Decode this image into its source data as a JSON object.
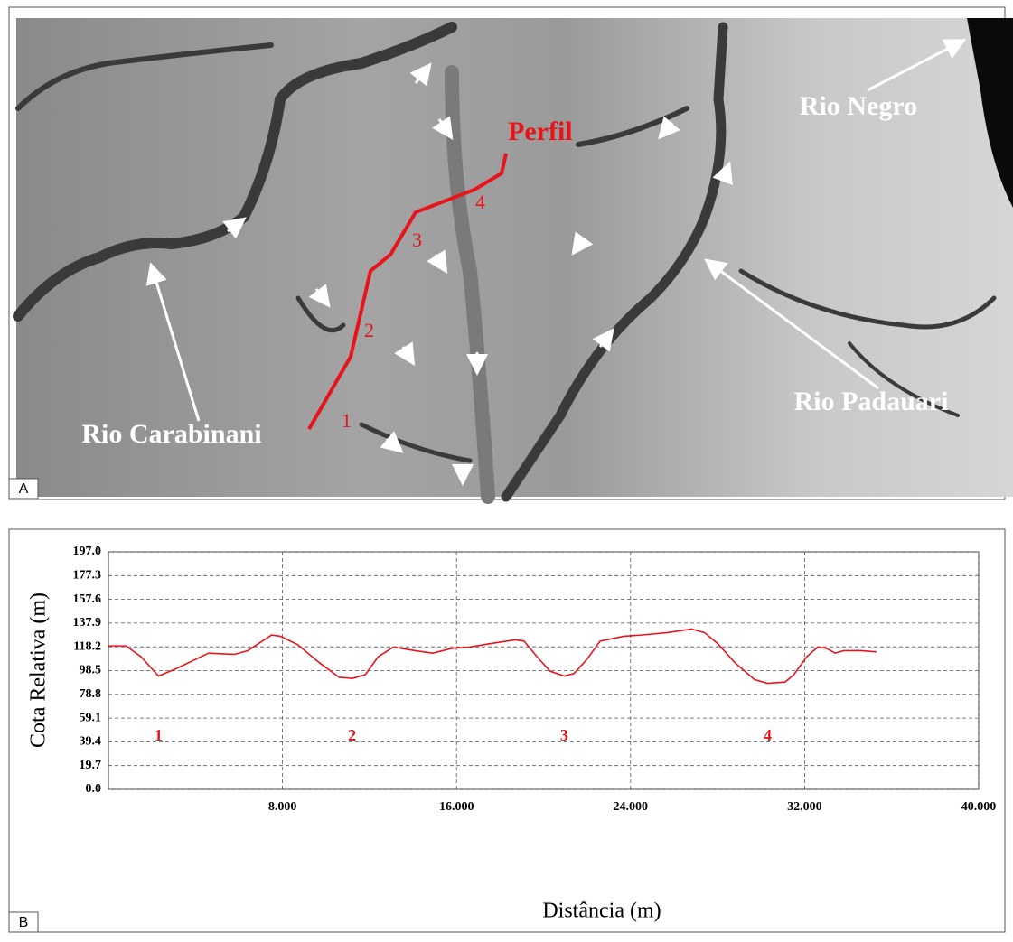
{
  "map": {
    "panel_label": "A",
    "profile_label": "Perfil",
    "rivers": [
      "Rio Negro",
      "Rio Carabinani",
      "Rio Padauari"
    ],
    "profile_points": [
      "1",
      "2",
      "3",
      "4"
    ]
  },
  "chart_data": {
    "type": "line",
    "panel_label": "B",
    "x_label": "Distância (m)",
    "y_label": "Cota Relativa (m)",
    "x": [
      0,
      800,
      1500,
      2300,
      3100,
      4600,
      5800,
      6400,
      7500,
      7900,
      8700,
      9700,
      10600,
      11200,
      11800,
      12400,
      13100,
      14100,
      14900,
      15800,
      16600,
      17600,
      18700,
      19100,
      19700,
      20300,
      20950,
      21400,
      22000,
      22600,
      23700,
      24500,
      25700,
      26800,
      27400,
      28000,
      28800,
      29700,
      30300,
      31100,
      31500,
      32100,
      32600,
      33000,
      33400,
      33800,
      34600,
      35300
    ],
    "series": [
      {
        "name": "Perfil",
        "color": "#e8141c",
        "values": [
          119,
          119,
          110,
          94,
          100,
          113,
          112,
          115,
          128,
          127,
          120,
          105,
          93,
          92,
          95,
          110,
          118,
          115,
          113,
          117,
          118,
          121,
          124,
          123,
          110,
          98,
          94,
          96,
          108,
          123,
          127,
          128,
          130,
          133,
          130,
          121,
          105,
          91,
          88,
          89,
          95,
          110,
          118,
          117,
          113,
          115,
          115,
          114
        ]
      }
    ],
    "annotations": [
      {
        "text": "1",
        "x": 2300
      },
      {
        "text": "2",
        "x": 11200
      },
      {
        "text": "3",
        "x": 20950
      },
      {
        "text": "4",
        "x": 30300
      }
    ],
    "xlim": [
      0,
      40000
    ],
    "xticks": [
      {
        "value": 8000,
        "label": "8.000"
      },
      {
        "value": 16000,
        "label": "16.000"
      },
      {
        "value": 24000,
        "label": "24.000"
      },
      {
        "value": 32000,
        "label": "32.000"
      },
      {
        "value": 40000,
        "label": "40.000"
      }
    ],
    "ylim": [
      0,
      197
    ],
    "yticks": [
      {
        "value": 0,
        "label": "0.0"
      },
      19.7,
      39.4,
      59.1,
      78.8,
      98.5,
      118.2,
      137.9,
      157.6,
      177.3,
      {
        "value": 197,
        "label": "197.0"
      }
    ],
    "grid": true
  }
}
